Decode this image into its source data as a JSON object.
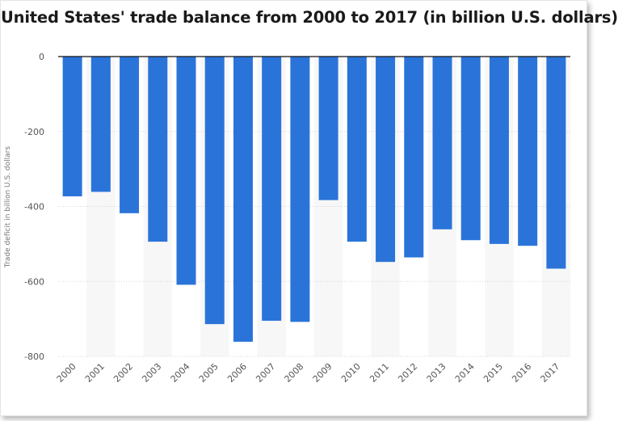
{
  "title": "United States' trade balance from 2000 to 2017 (in billion U.S. dollars)",
  "colors": {
    "bar": "#2a74d9",
    "alternate_band": "#f7f7f7",
    "grid": "#d5d5d5",
    "zero_line": "#111111"
  },
  "chart_data": {
    "type": "bar",
    "title": "United States' trade balance from 2000 to 2017 (in billion U.S. dollars)",
    "xlabel": "",
    "ylabel": "Trade deficit in billion U.S. dollars",
    "categories": [
      "2000",
      "2001",
      "2002",
      "2003",
      "2004",
      "2005",
      "2006",
      "2007",
      "2008",
      "2009",
      "2010",
      "2011",
      "2012",
      "2013",
      "2014",
      "2015",
      "2016",
      "2017"
    ],
    "values": [
      -373,
      -361,
      -418,
      -494,
      -609,
      -714,
      -761,
      -705,
      -708,
      -383,
      -494,
      -548,
      -536,
      -461,
      -490,
      -500,
      -505,
      -566
    ],
    "ylim": [
      -800,
      0
    ],
    "yticks": [
      0,
      -200,
      -400,
      -600,
      -800
    ],
    "ytick_labels": [
      "0",
      "-200",
      "-400",
      "-600",
      "-800"
    ],
    "grid": true,
    "legend": "none"
  }
}
